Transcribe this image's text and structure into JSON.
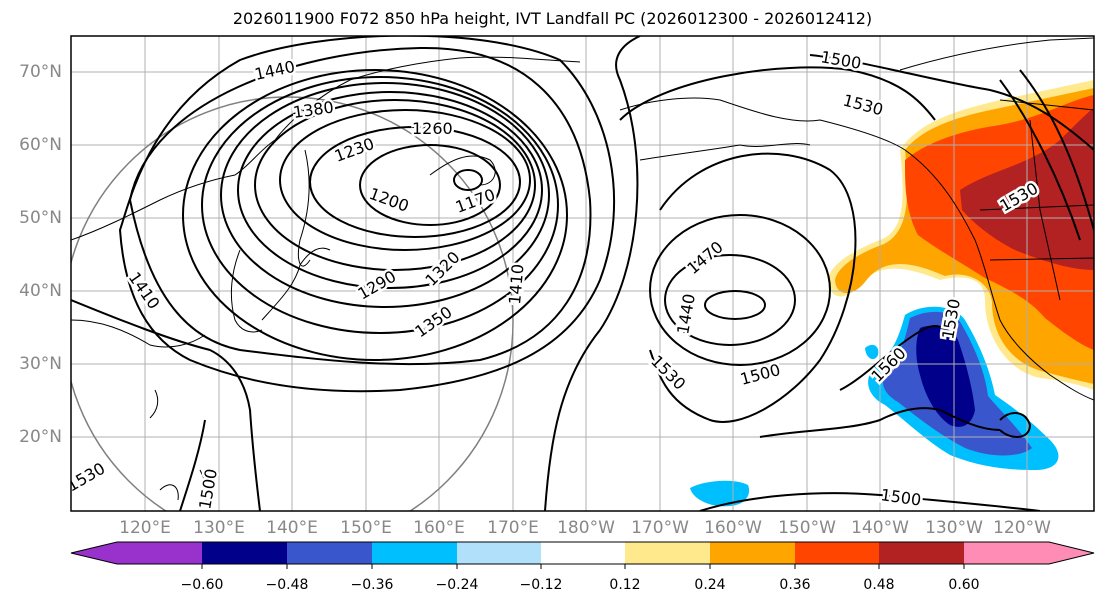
{
  "title": "2026011900 F072 850 hPa height, IVT Landfall PC (2026012300 - 2026012412)",
  "latitude_labels": [
    "70°N",
    "60°N",
    "50°N",
    "40°N",
    "30°N",
    "20°N"
  ],
  "longitude_labels": [
    "120°E",
    "130°E",
    "140°E",
    "150°E",
    "160°E",
    "170°E",
    "180°W",
    "170°W",
    "160°W",
    "150°W",
    "140°W",
    "130°W",
    "120°W"
  ],
  "contour_labels": [
    "1440",
    "1380",
    "1260",
    "1230",
    "1200",
    "1170",
    "1290",
    "1320",
    "1350",
    "1410",
    "1470",
    "1440",
    "1500",
    "1530",
    "1500",
    "1530",
    "1530",
    "1530",
    "1560",
    "1500",
    "1530",
    "1500",
    "1410"
  ],
  "colorbar": {
    "tick_labels": [
      "−0.60",
      "−0.48",
      "−0.36",
      "−0.24",
      "−0.12",
      "0.12",
      "0.24",
      "0.36",
      "0.48",
      "0.60"
    ],
    "colors": [
      "#9932cc",
      "#00008b",
      "#3a56cc",
      "#00bfff",
      "#b0e0fa",
      "#ffffff",
      "#ffe98c",
      "#ffa500",
      "#ff4500",
      "#b22222",
      "#ff8cb4"
    ]
  }
}
